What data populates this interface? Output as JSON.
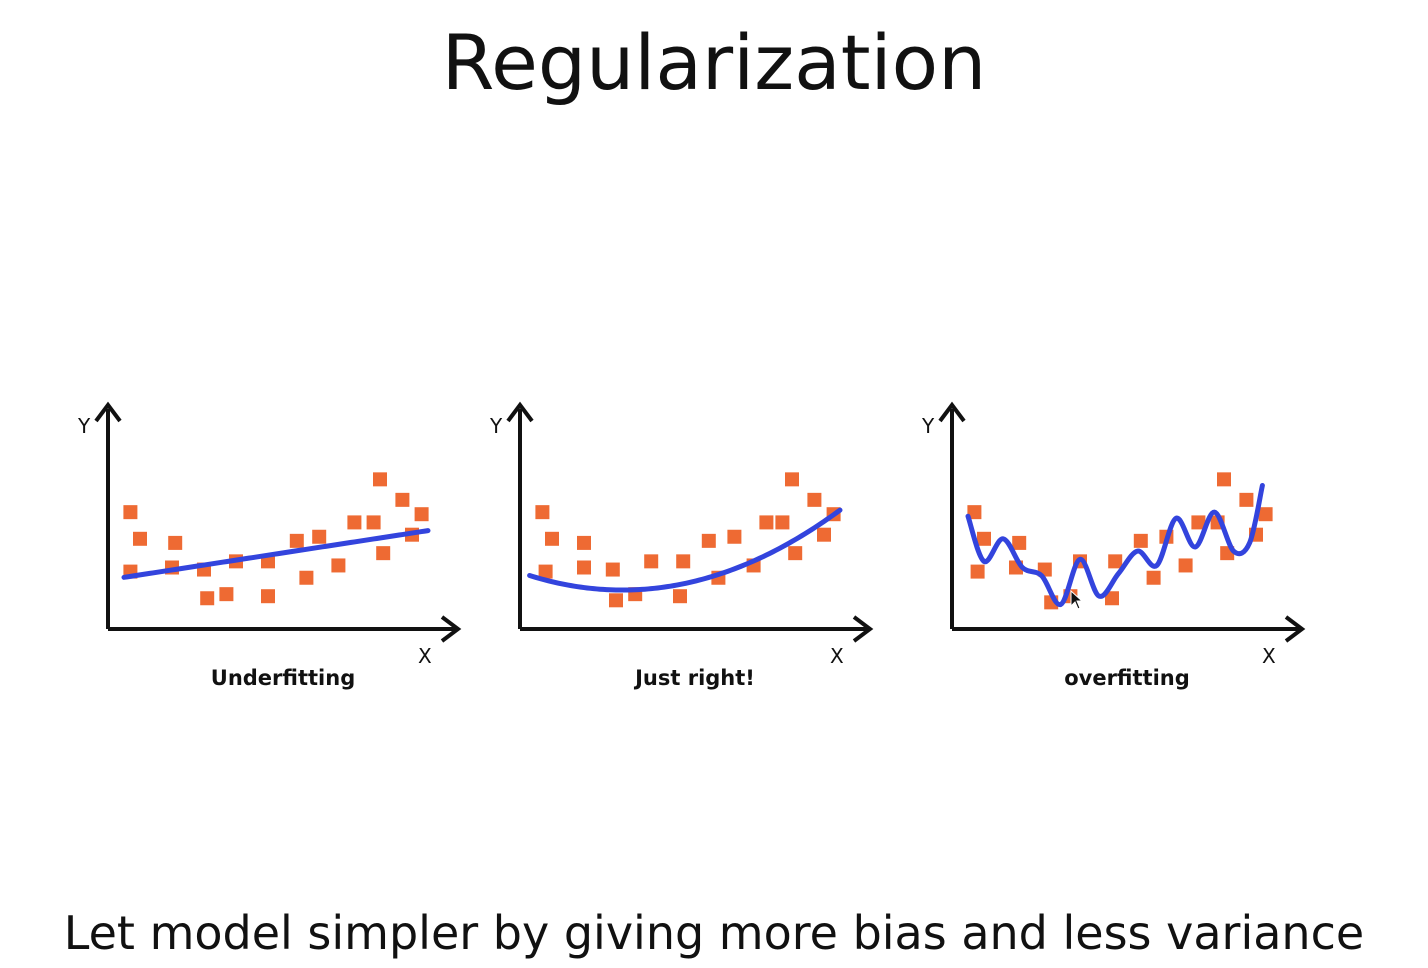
{
  "slide": {
    "title": "Regularization",
    "subtitle": "Let model simpler by giving more bias and less variance"
  },
  "colors": {
    "point": "#ee6a33",
    "curve": "#3344dd",
    "axis": "#111111"
  },
  "chart_data": [
    {
      "type": "scatter",
      "title": "",
      "caption": "Underfitting",
      "xlabel": "X",
      "ylabel": "Y",
      "xlim": [
        0,
        100
      ],
      "ylim": [
        0,
        100
      ],
      "points": [
        [
          7,
          57
        ],
        [
          10,
          44
        ],
        [
          7,
          28
        ],
        [
          21,
          42
        ],
        [
          20,
          30
        ],
        [
          30,
          29
        ],
        [
          31,
          15
        ],
        [
          37,
          17
        ],
        [
          40,
          33
        ],
        [
          50,
          33
        ],
        [
          50,
          16
        ],
        [
          59,
          43
        ],
        [
          62,
          25
        ],
        [
          66,
          45
        ],
        [
          72,
          31
        ],
        [
          77,
          52
        ],
        [
          83,
          52
        ],
        [
          85,
          73
        ],
        [
          86,
          37
        ],
        [
          92,
          63
        ],
        [
          95,
          46
        ],
        [
          98,
          56
        ]
      ],
      "fit": {
        "kind": "linear",
        "y_at_x0": 24,
        "slope": 0.24,
        "x_range": [
          5,
          100
        ]
      }
    },
    {
      "type": "scatter",
      "title": "",
      "caption": "Just right!",
      "xlabel": "X",
      "ylabel": "Y",
      "xlim": [
        0,
        100
      ],
      "ylim": [
        0,
        100
      ],
      "points": [
        [
          7,
          57
        ],
        [
          10,
          44
        ],
        [
          8,
          28
        ],
        [
          20,
          42
        ],
        [
          20,
          30
        ],
        [
          29,
          29
        ],
        [
          30,
          14
        ],
        [
          36,
          17
        ],
        [
          41,
          33
        ],
        [
          51,
          33
        ],
        [
          50,
          16
        ],
        [
          59,
          43
        ],
        [
          62,
          25
        ],
        [
          67,
          45
        ],
        [
          73,
          31
        ],
        [
          77,
          52
        ],
        [
          82,
          52
        ],
        [
          85,
          73
        ],
        [
          86,
          37
        ],
        [
          92,
          63
        ],
        [
          95,
          46
        ],
        [
          98,
          56
        ]
      ],
      "fit": {
        "kind": "quadratic",
        "vertex_x": 32,
        "vertex_y": 19,
        "x_range": [
          3,
          100
        ],
        "y_at_end": 58
      }
    },
    {
      "type": "scatter",
      "title": "",
      "caption": "overfitting",
      "xlabel": "X",
      "ylabel": "Y",
      "xlim": [
        0,
        100
      ],
      "ylim": [
        0,
        100
      ],
      "points": [
        [
          7,
          57
        ],
        [
          10,
          44
        ],
        [
          8,
          28
        ],
        [
          21,
          42
        ],
        [
          20,
          30
        ],
        [
          29,
          29
        ],
        [
          31,
          13
        ],
        [
          37,
          16
        ],
        [
          40,
          33
        ],
        [
          51,
          33
        ],
        [
          50,
          15
        ],
        [
          59,
          43
        ],
        [
          63,
          25
        ],
        [
          67,
          45
        ],
        [
          73,
          31
        ],
        [
          77,
          52
        ],
        [
          83,
          52
        ],
        [
          85,
          73
        ],
        [
          86,
          37
        ],
        [
          92,
          63
        ],
        [
          95,
          46
        ],
        [
          98,
          56
        ]
      ],
      "fit": {
        "kind": "wiggly",
        "x": [
          5,
          10,
          16,
          22,
          28,
          34,
          40,
          46,
          52,
          58,
          64,
          70,
          76,
          82,
          88,
          93,
          97
        ],
        "y": [
          55,
          33,
          44,
          30,
          26,
          12,
          34,
          16,
          27,
          38,
          31,
          54,
          40,
          57,
          38,
          42,
          70
        ]
      }
    }
  ]
}
